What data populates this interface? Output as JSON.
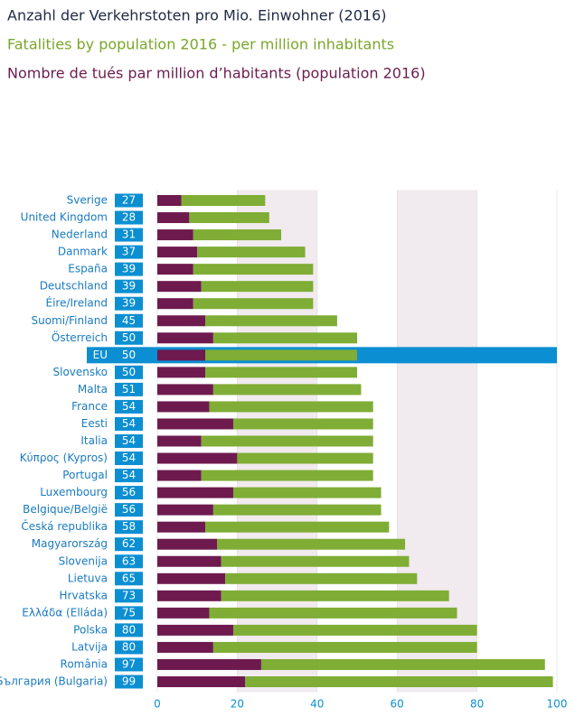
{
  "chart_data": {
    "type": "stacked-barh",
    "title": "Anzahl der Verkehrstoten pro Mio. Einwohner (2016)",
    "subtitle": "Fatalities by population 2016 - per million inhabitants",
    "subtitle2": "Nombre de tués par million d’habitants (population 2016)",
    "categories": [
      "Sverige",
      "United Kingdom",
      "Nederland",
      "Danmark",
      "España",
      "Deutschland",
      "Éire/Ireland",
      "Suomi/Finland",
      "Österreich",
      "EU",
      "Slovensko",
      "Malta",
      "France",
      "Eesti",
      "Italia",
      "Κύπρος (Kypros)",
      "Portugal",
      "Luxembourg",
      "Belgique/België",
      "Česká republika",
      "Magyarország",
      "Slovenija",
      "Lietuva",
      "Hrvatska",
      "Ελλάδα (Elláda)",
      "Polska",
      "Latvija",
      "România",
      "България (Bulgaria)"
    ],
    "totals": [
      27,
      28,
      31,
      37,
      39,
      39,
      39,
      45,
      50,
      50,
      50,
      51,
      54,
      54,
      54,
      54,
      54,
      56,
      56,
      58,
      62,
      63,
      65,
      73,
      75,
      80,
      80,
      97,
      99
    ],
    "series": [
      {
        "color": "#6e1a4f",
        "values": [
          6,
          8,
          9,
          10,
          9,
          11,
          9,
          12,
          14,
          12,
          12,
          14,
          13,
          19,
          11,
          20,
          11,
          19,
          14,
          12,
          15,
          16,
          17,
          16,
          13,
          19,
          14,
          26,
          22
        ]
      },
      {
        "color": "#7fad35",
        "values": [
          21,
          20,
          22,
          27,
          30,
          28,
          30,
          33,
          36,
          38,
          38,
          37,
          41,
          35,
          43,
          34,
          43,
          37,
          42,
          46,
          47,
          47,
          48,
          57,
          62,
          61,
          66,
          71,
          77
        ]
      }
    ],
    "highlight": "EU",
    "xlim": [
      0,
      100
    ],
    "xticks": [
      0,
      20,
      40,
      60,
      80,
      100
    ]
  }
}
